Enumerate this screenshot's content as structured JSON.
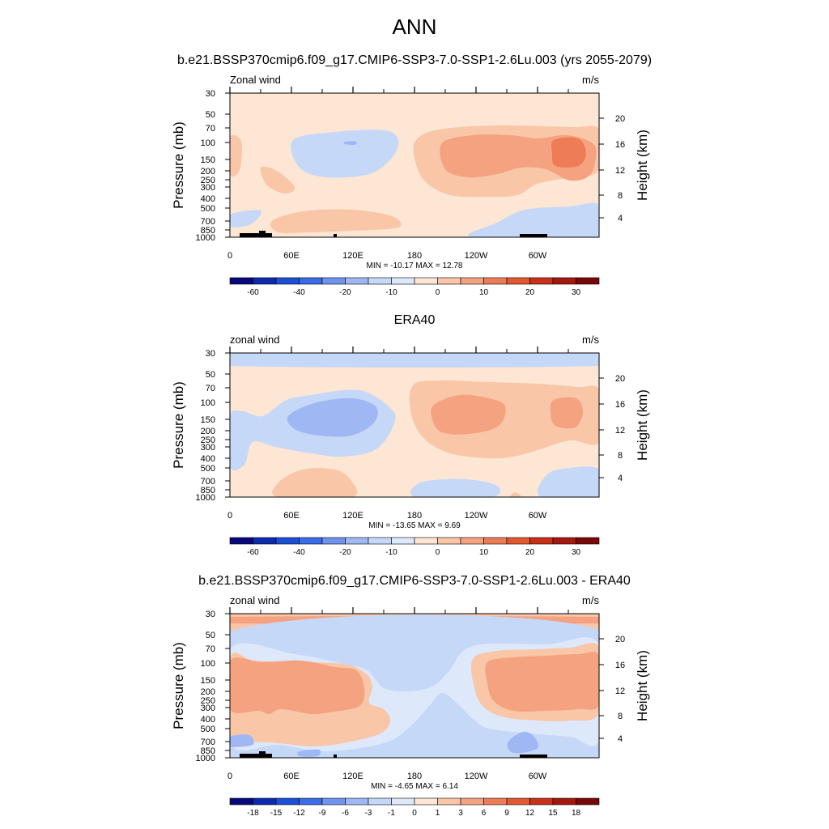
{
  "figure": {
    "title": "ANN"
  },
  "colors": {
    "contour_scale": [
      "#08087a",
      "#0c2bb0",
      "#1b4fd6",
      "#3a6cea",
      "#6f93ee",
      "#9fb8f4",
      "#c6d8f8",
      "#dde9fb",
      "#fde6d4",
      "#f9c6a8",
      "#f4a27f",
      "#ee7d57",
      "#e4582f",
      "#c9301a",
      "#a4180e",
      "#7a0707"
    ],
    "land": "#000000"
  },
  "chart_data": [
    {
      "type": "heatmap",
      "title": "b.e21.BSSP370cmip6.f09_g17.CMIP6-SSP3-7.0-SSP1-2.6Lu.003 (yrs 2055-2079)",
      "variable_label": "Zonal wind",
      "units": "m/s",
      "ylabel": "Pressure (mb)",
      "ylabel_right": "Height (km)",
      "x_ticks": [
        "0",
        "60E",
        "120E",
        "180",
        "120W",
        "60W"
      ],
      "y_ticks": [
        "30",
        "50",
        "70",
        "100",
        "150",
        "200",
        "250",
        "300",
        "400",
        "500",
        "700",
        "850",
        "1000"
      ],
      "y_ticks_right": [
        "20",
        "16",
        "12",
        "8",
        "4"
      ],
      "stats": "MIN = -10.17  MAX =  12.78",
      "colorbar_levels": [
        "-60",
        "-40",
        "-20",
        "-10",
        "0",
        "10",
        "20",
        "30"
      ],
      "min": -10.17,
      "max": 12.78
    },
    {
      "type": "heatmap",
      "title": "ERA40",
      "variable_label": "zonal wind",
      "units": "m/s",
      "ylabel": "Pressure (mb)",
      "ylabel_right": "Height (km)",
      "x_ticks": [
        "0",
        "60E",
        "120E",
        "180",
        "120W",
        "60W"
      ],
      "y_ticks": [
        "30",
        "50",
        "70",
        "100",
        "150",
        "200",
        "250",
        "300",
        "400",
        "500",
        "700",
        "850",
        "1000"
      ],
      "y_ticks_right": [
        "20",
        "16",
        "12",
        "8",
        "4"
      ],
      "stats": "MIN = -13.65  MAX =   9.69",
      "colorbar_levels": [
        "-60",
        "-40",
        "-20",
        "-10",
        "0",
        "10",
        "20",
        "30"
      ],
      "min": -13.65,
      "max": 9.69
    },
    {
      "type": "heatmap",
      "title": "b.e21.BSSP370cmip6.f09_g17.CMIP6-SSP3-7.0-SSP1-2.6Lu.003 - ERA40",
      "variable_label": "zonal wind",
      "units": "m/s",
      "ylabel": "Pressure (mb)",
      "ylabel_right": "Height (km)",
      "x_ticks": [
        "0",
        "60E",
        "120E",
        "180",
        "120W",
        "60W"
      ],
      "y_ticks": [
        "30",
        "50",
        "70",
        "100",
        "150",
        "200",
        "250",
        "300",
        "400",
        "500",
        "700",
        "850",
        "1000"
      ],
      "y_ticks_right": [
        "20",
        "16",
        "12",
        "8",
        "4"
      ],
      "stats": "MIN =  -4.65  MAX =  6.14",
      "colorbar_levels": [
        "-18",
        "-15",
        "-12",
        "-9",
        "-6",
        "-3",
        "-1",
        "0",
        "1",
        "3",
        "6",
        "9",
        "12",
        "15",
        "18"
      ],
      "min": -4.65,
      "max": 6.14
    }
  ]
}
